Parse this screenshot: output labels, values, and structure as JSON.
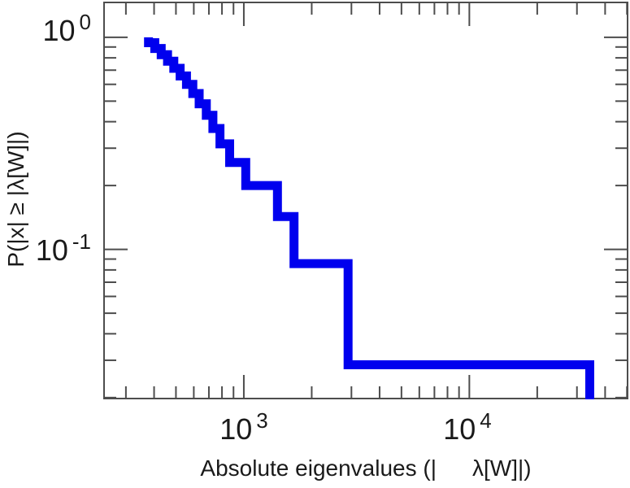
{
  "figure": {
    "background": "#ffffff",
    "frame_color": "#4d4d4d",
    "text_color": "#1a1a1a"
  },
  "chart_data": {
    "type": "line",
    "subtype": "log-log step CCDF of eigenvalue magnitudes",
    "title": "",
    "xlabel_prefix": "Absolute eigenvalues (|",
    "xlabel_suffix": "λ[W]|)",
    "ylabel": "P(|x| ≥ |λ[W]|)",
    "xscale": "log",
    "yscale": "log",
    "xlim": [
      240,
      50300
    ],
    "ylim": [
      0.0198,
      1.46
    ],
    "grid": false,
    "legend": null,
    "line_color": "#0000ee",
    "line_width": 11,
    "n_eigenvalues": 35,
    "eigenvalues": [
      {
        "value": 378,
        "count": 2
      },
      {
        "value": 403,
        "count": 2
      },
      {
        "value": 430,
        "count": 2
      },
      {
        "value": 459,
        "count": 2
      },
      {
        "value": 489,
        "count": 2
      },
      {
        "value": 522,
        "count": 2
      },
      {
        "value": 557,
        "count": 2
      },
      {
        "value": 594,
        "count": 2
      },
      {
        "value": 634,
        "count": 2
      },
      {
        "value": 682,
        "count": 2
      },
      {
        "value": 729,
        "count": 2
      },
      {
        "value": 784,
        "count": 2
      },
      {
        "value": 865,
        "count": 2
      },
      {
        "value": 1020,
        "count": 2
      },
      {
        "value": 1410,
        "count": 2
      },
      {
        "value": 1670,
        "count": 2
      },
      {
        "value": 2900,
        "count": 2
      },
      {
        "value": 34200,
        "count": 1
      }
    ],
    "ccdf_levels": [
      1.0,
      0.943,
      0.886,
      0.829,
      0.771,
      0.714,
      0.657,
      0.6,
      0.543,
      0.486,
      0.429,
      0.371,
      0.314,
      0.257,
      0.2,
      0.143,
      0.086,
      0.029,
      0
    ],
    "xticks": {
      "major": [
        {
          "value": 1000,
          "base": "10",
          "sup": "3"
        },
        {
          "value": 10000,
          "base": "10",
          "sup": "4"
        }
      ],
      "minor": [
        300,
        400,
        500,
        600,
        700,
        800,
        900,
        2000,
        3000,
        4000,
        5000,
        6000,
        7000,
        8000,
        9000,
        20000,
        30000,
        40000,
        50000
      ]
    },
    "yticks": {
      "major": [
        {
          "value": 1.0,
          "base": "10",
          "sup": "0"
        },
        {
          "value": 0.1,
          "base": "10",
          "sup": "-1"
        }
      ],
      "minor": [
        0.9,
        0.8,
        0.7,
        0.6,
        0.5,
        0.4,
        0.3,
        0.2,
        0.09,
        0.08,
        0.07,
        0.06,
        0.05,
        0.04,
        0.03,
        0.02
      ]
    }
  }
}
